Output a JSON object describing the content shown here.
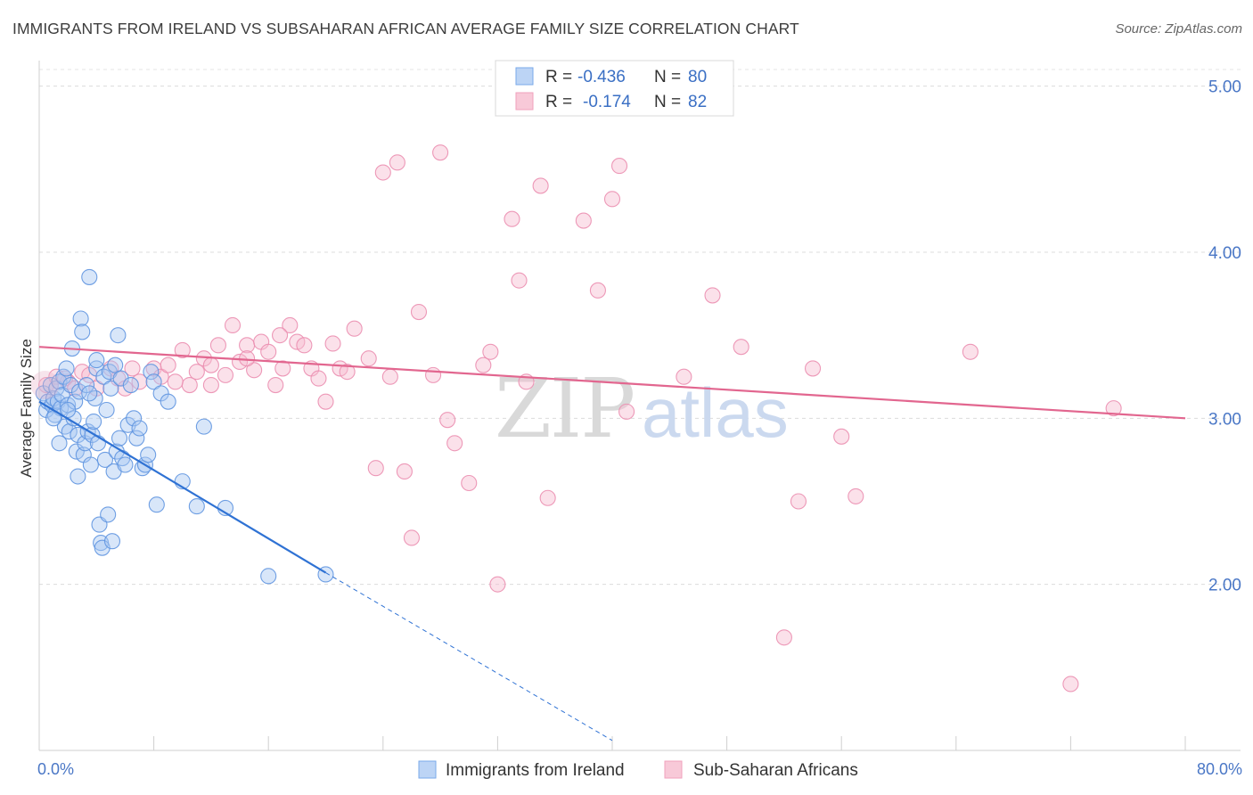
{
  "title": "IMMIGRANTS FROM IRELAND VS SUBSAHARAN AFRICAN AVERAGE FAMILY SIZE CORRELATION CHART",
  "source": "Source: ZipAtlas.com",
  "watermark": {
    "zip": "ZIP",
    "atlas": "atlas"
  },
  "legend": {
    "r_label": "R =",
    "n_label": "N =",
    "ireland": {
      "r": "-0.436",
      "n": "80"
    },
    "subsaharan": {
      "r": "-0.174",
      "n": "82"
    }
  },
  "chart_data": {
    "type": "scatter",
    "title": "IMMIGRANTS FROM IRELAND VS SUBSAHARAN AFRICAN AVERAGE FAMILY SIZE CORRELATION CHART",
    "xlabel": "",
    "ylabel": "Average Family Size",
    "xlim": [
      0,
      80
    ],
    "ylim": [
      1.0,
      5.1
    ],
    "x_tick_labels": [
      "0.0%",
      "80.0%"
    ],
    "y_ticks": [
      2.0,
      3.0,
      4.0,
      5.0
    ],
    "y_tick_labels": [
      "2.00",
      "3.00",
      "4.00",
      "5.00"
    ],
    "grid": "dashed horizontal",
    "legend_position": "top-center",
    "colors": {
      "ireland": "#7aaaea",
      "ireland_line": "#2f72d4",
      "subsaharan": "#f0a1bd",
      "subsaharan_line": "#e2668f"
    },
    "series": [
      {
        "name": "Immigrants from Ireland",
        "color": "#7aaaea",
        "trend": {
          "x0": 0,
          "y0": 3.1,
          "x1": 20,
          "y1": 2.07,
          "dash_to_x": 40,
          "dash_to_y": 1.06
        },
        "points": [
          [
            0.3,
            3.15
          ],
          [
            0.5,
            3.05
          ],
          [
            0.6,
            3.1
          ],
          [
            0.8,
            3.2
          ],
          [
            0.9,
            3.08
          ],
          [
            1.0,
            3.12
          ],
          [
            1.1,
            3.02
          ],
          [
            1.2,
            3.18
          ],
          [
            1.3,
            3.1
          ],
          [
            1.4,
            3.22
          ],
          [
            1.5,
            3.06
          ],
          [
            1.6,
            3.14
          ],
          [
            1.7,
            3.25
          ],
          [
            1.8,
            2.95
          ],
          [
            1.9,
            3.3
          ],
          [
            2.0,
            3.08
          ],
          [
            2.1,
            2.92
          ],
          [
            2.2,
            3.2
          ],
          [
            2.3,
            3.42
          ],
          [
            2.4,
            3.0
          ],
          [
            2.5,
            3.1
          ],
          [
            2.6,
            2.8
          ],
          [
            2.7,
            2.9
          ],
          [
            2.8,
            3.16
          ],
          [
            2.9,
            3.6
          ],
          [
            3.0,
            3.52
          ],
          [
            3.1,
            2.78
          ],
          [
            3.2,
            2.85
          ],
          [
            3.3,
            3.2
          ],
          [
            3.4,
            2.92
          ],
          [
            3.5,
            3.85
          ],
          [
            3.6,
            2.72
          ],
          [
            3.7,
            2.9
          ],
          [
            3.8,
            2.98
          ],
          [
            3.9,
            3.12
          ],
          [
            4.0,
            3.3
          ],
          [
            4.1,
            2.85
          ],
          [
            4.2,
            2.36
          ],
          [
            4.3,
            2.25
          ],
          [
            4.4,
            2.22
          ],
          [
            4.5,
            3.25
          ],
          [
            4.6,
            2.75
          ],
          [
            4.7,
            3.05
          ],
          [
            4.8,
            2.42
          ],
          [
            4.9,
            3.28
          ],
          [
            5.0,
            3.18
          ],
          [
            5.1,
            2.26
          ],
          [
            5.2,
            2.68
          ],
          [
            5.3,
            3.32
          ],
          [
            5.4,
            2.8
          ],
          [
            5.5,
            3.5
          ],
          [
            5.6,
            2.88
          ],
          [
            5.7,
            3.24
          ],
          [
            5.8,
            2.76
          ],
          [
            6.0,
            2.72
          ],
          [
            6.2,
            2.96
          ],
          [
            6.4,
            3.2
          ],
          [
            6.6,
            3.0
          ],
          [
            6.8,
            2.88
          ],
          [
            7.0,
            2.94
          ],
          [
            7.2,
            2.7
          ],
          [
            7.4,
            2.72
          ],
          [
            7.6,
            2.78
          ],
          [
            7.8,
            3.28
          ],
          [
            8.0,
            3.22
          ],
          [
            8.2,
            2.48
          ],
          [
            8.5,
            3.15
          ],
          [
            9.0,
            3.1
          ],
          [
            10.0,
            2.62
          ],
          [
            11.0,
            2.47
          ],
          [
            11.5,
            2.95
          ],
          [
            13.0,
            2.46
          ],
          [
            16.0,
            2.05
          ],
          [
            20.0,
            2.06
          ],
          [
            1.0,
            3.0
          ],
          [
            1.4,
            2.85
          ],
          [
            2.0,
            3.05
          ],
          [
            3.5,
            3.15
          ],
          [
            4.0,
            3.35
          ],
          [
            2.7,
            2.65
          ]
        ]
      },
      {
        "name": "Sub-Saharan Africans",
        "color": "#f0a1bd",
        "trend": {
          "x0": 0,
          "y0": 3.43,
          "x1": 80,
          "y1": 3.0
        },
        "points": [
          [
            0.5,
            3.2
          ],
          [
            1.2,
            3.25
          ],
          [
            2.0,
            3.22
          ],
          [
            3.0,
            3.28
          ],
          [
            4.0,
            3.18
          ],
          [
            5.0,
            3.3
          ],
          [
            5.5,
            3.24
          ],
          [
            6.0,
            3.18
          ],
          [
            7.0,
            3.22
          ],
          [
            8.0,
            3.3
          ],
          [
            8.5,
            3.25
          ],
          [
            9.0,
            3.32
          ],
          [
            10.0,
            3.41
          ],
          [
            10.5,
            3.2
          ],
          [
            11.0,
            3.28
          ],
          [
            11.5,
            3.36
          ],
          [
            12.0,
            3.32
          ],
          [
            12.5,
            3.44
          ],
          [
            13.0,
            3.26
          ],
          [
            13.5,
            3.56
          ],
          [
            14.0,
            3.34
          ],
          [
            14.5,
            3.44
          ],
          [
            15.0,
            3.29
          ],
          [
            15.5,
            3.46
          ],
          [
            16.0,
            3.4
          ],
          [
            16.5,
            3.2
          ],
          [
            17.0,
            3.3
          ],
          [
            17.5,
            3.56
          ],
          [
            18.0,
            3.46
          ],
          [
            18.5,
            3.44
          ],
          [
            19.0,
            3.3
          ],
          [
            19.5,
            3.24
          ],
          [
            20.0,
            3.1
          ],
          [
            20.5,
            3.45
          ],
          [
            21.0,
            3.3
          ],
          [
            21.5,
            3.28
          ],
          [
            22.0,
            3.54
          ],
          [
            23.0,
            3.36
          ],
          [
            23.5,
            2.7
          ],
          [
            24.0,
            4.48
          ],
          [
            24.5,
            3.25
          ],
          [
            25.0,
            4.54
          ],
          [
            25.5,
            2.68
          ],
          [
            26.0,
            2.28
          ],
          [
            26.5,
            3.64
          ],
          [
            27.5,
            3.26
          ],
          [
            28.0,
            4.6
          ],
          [
            28.5,
            2.99
          ],
          [
            29.0,
            2.85
          ],
          [
            30.0,
            2.61
          ],
          [
            31.0,
            3.32
          ],
          [
            31.5,
            3.4
          ],
          [
            32.0,
            2.0
          ],
          [
            33.0,
            4.2
          ],
          [
            33.5,
            3.83
          ],
          [
            34.0,
            3.22
          ],
          [
            35.0,
            4.4
          ],
          [
            35.5,
            2.52
          ],
          [
            38.0,
            4.19
          ],
          [
            39.0,
            3.77
          ],
          [
            40.0,
            4.32
          ],
          [
            40.5,
            4.52
          ],
          [
            41.0,
            3.04
          ],
          [
            45.0,
            3.25
          ],
          [
            47.0,
            3.74
          ],
          [
            49.0,
            3.43
          ],
          [
            52.0,
            1.68
          ],
          [
            53.0,
            2.5
          ],
          [
            54.0,
            3.3
          ],
          [
            56.0,
            2.89
          ],
          [
            57.0,
            2.53
          ],
          [
            65.0,
            3.4
          ],
          [
            72.0,
            1.4
          ],
          [
            75.0,
            3.06
          ],
          [
            1.8,
            3.24
          ],
          [
            2.5,
            3.18
          ],
          [
            3.5,
            3.26
          ],
          [
            6.5,
            3.3
          ],
          [
            9.5,
            3.22
          ],
          [
            12.0,
            3.2
          ],
          [
            14.5,
            3.36
          ],
          [
            16.8,
            3.5
          ]
        ]
      }
    ]
  },
  "bottom_legend": {
    "ireland": "Immigrants from Ireland",
    "subsaharan": "Sub-Saharan Africans"
  }
}
